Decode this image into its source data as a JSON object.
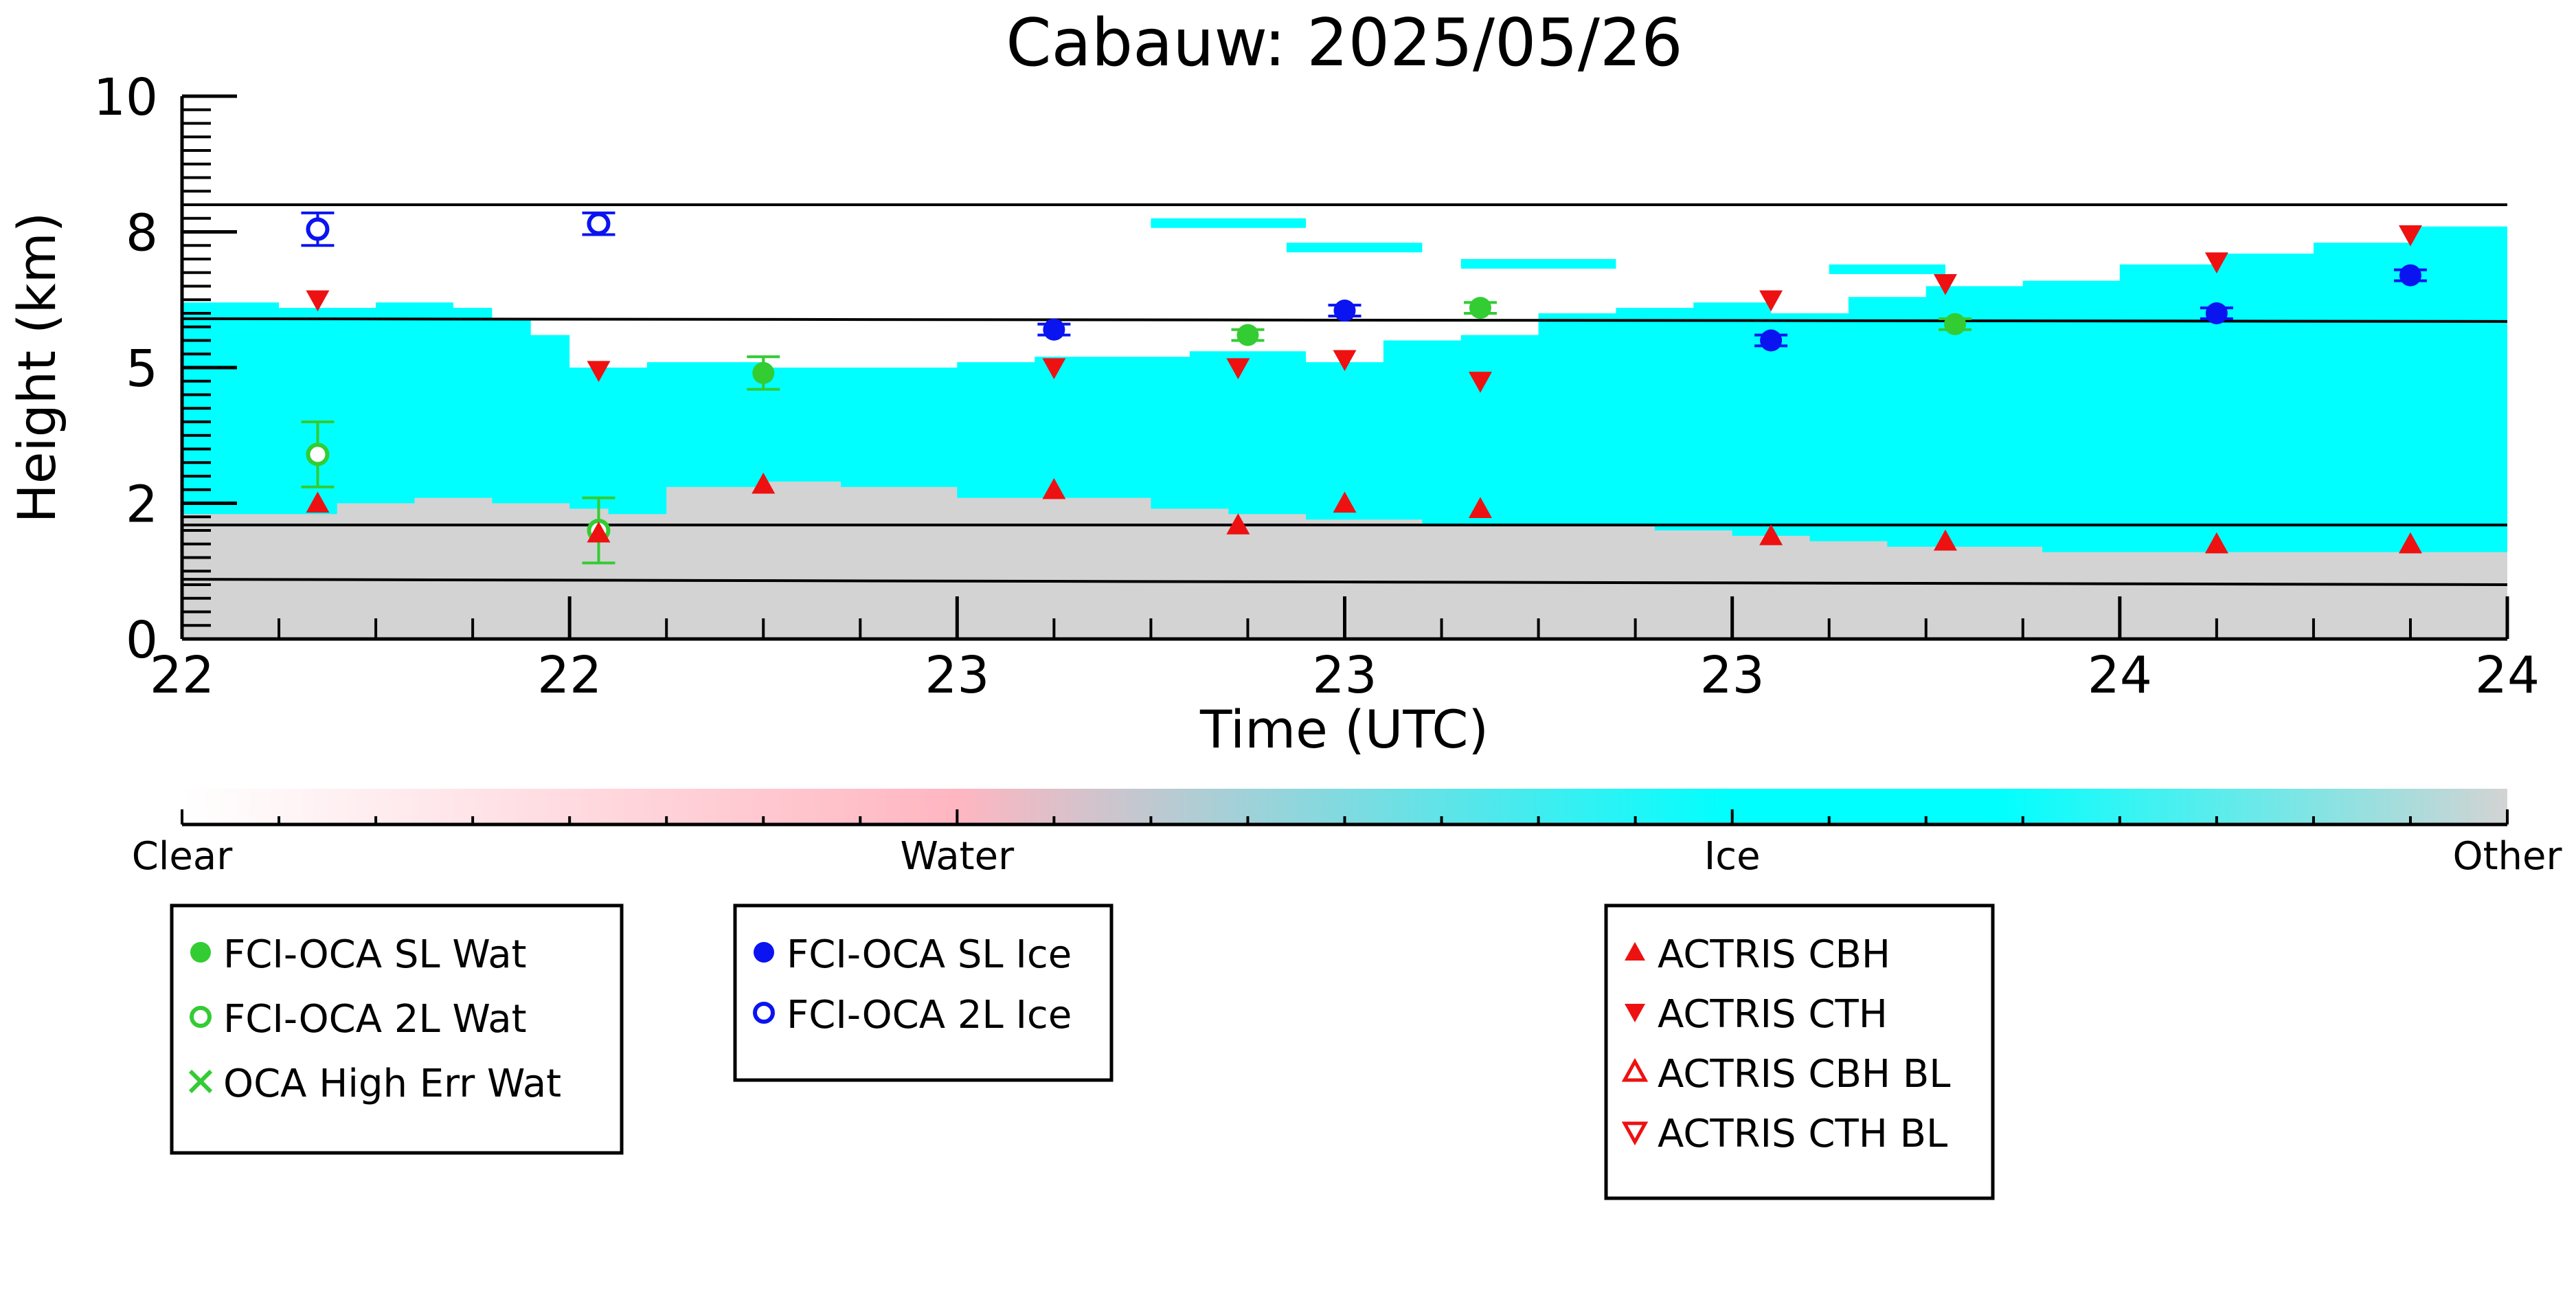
{
  "chart_data": {
    "type": "scatter",
    "title": "Cabauw: 2025/05/26",
    "xlabel": "Time (UTC)",
    "ylabel": "Height (km)",
    "xlim": [
      0,
      120
    ],
    "ylim": [
      0,
      10
    ],
    "x_ticks": [
      {
        "x": 0,
        "label": "22"
      },
      {
        "x": 20,
        "label": "22"
      },
      {
        "x": 40,
        "label": "23"
      },
      {
        "x": 60,
        "label": "23"
      },
      {
        "x": 80,
        "label": "23"
      },
      {
        "x": 100,
        "label": "24"
      },
      {
        "x": 120,
        "label": "24"
      }
    ],
    "y_ticks": [
      {
        "y": 0,
        "label": "0"
      },
      {
        "y": 2.5,
        "label": "2"
      },
      {
        "y": 5,
        "label": "5"
      },
      {
        "y": 7.5,
        "label": "8"
      },
      {
        "y": 10,
        "label": "10"
      }
    ],
    "classification_background": {
      "other_top": [
        [
          0,
          2.3
        ],
        [
          3,
          2.3
        ],
        [
          8,
          2.5
        ],
        [
          12,
          2.6
        ],
        [
          16,
          2.5
        ],
        [
          20,
          2.4
        ],
        [
          22,
          2.3
        ],
        [
          25,
          2.8
        ],
        [
          30,
          2.9
        ],
        [
          34,
          2.8
        ],
        [
          40,
          2.6
        ],
        [
          46,
          2.6
        ],
        [
          50,
          2.4
        ],
        [
          54,
          2.3
        ],
        [
          58,
          2.2
        ],
        [
          60,
          2.2
        ],
        [
          64,
          2.1
        ],
        [
          68,
          2.1
        ],
        [
          72,
          2.1
        ],
        [
          76,
          2.0
        ],
        [
          80,
          1.9
        ],
        [
          84,
          1.8
        ],
        [
          88,
          1.7
        ],
        [
          92,
          1.7
        ],
        [
          96,
          1.6
        ],
        [
          100,
          1.6
        ],
        [
          105,
          1.6
        ],
        [
          110,
          1.6
        ],
        [
          115,
          1.6
        ],
        [
          120,
          1.6
        ]
      ],
      "ice_top": [
        [
          0,
          6.2
        ],
        [
          5,
          6.1
        ],
        [
          10,
          6.2
        ],
        [
          14,
          6.1
        ],
        [
          16,
          5.9
        ],
        [
          18,
          5.6
        ],
        [
          20,
          5.0
        ],
        [
          24,
          5.1
        ],
        [
          30,
          5.0
        ],
        [
          36,
          5.0
        ],
        [
          40,
          5.1
        ],
        [
          44,
          5.2
        ],
        [
          48,
          5.2
        ],
        [
          52,
          5.3
        ],
        [
          55,
          5.3
        ],
        [
          58,
          5.1
        ],
        [
          62,
          5.5
        ],
        [
          66,
          5.6
        ],
        [
          70,
          6.0
        ],
        [
          74,
          6.1
        ],
        [
          78,
          6.2
        ],
        [
          82,
          6.0
        ],
        [
          86,
          6.3
        ],
        [
          90,
          6.5
        ],
        [
          95,
          6.6
        ],
        [
          100,
          6.9
        ],
        [
          105,
          7.1
        ],
        [
          110,
          7.3
        ],
        [
          115,
          7.6
        ],
        [
          120,
          7.8
        ]
      ],
      "reference_lines_km": [
        [
          [
            0,
            8.0
          ],
          [
            120,
            8.0
          ]
        ],
        [
          [
            0,
            5.9
          ],
          [
            120,
            5.85
          ]
        ],
        [
          [
            0,
            2.1
          ],
          [
            120,
            2.1
          ]
        ],
        [
          [
            0,
            1.1
          ],
          [
            120,
            1.0
          ]
        ]
      ]
    },
    "colorbar": {
      "labels": [
        "Clear",
        "Water",
        "Ice",
        "Other"
      ],
      "colors": {
        "clear": "#ffffff",
        "water": "#ffb6c1",
        "ice": "#00ffff",
        "other": "#d3d3d3"
      }
    },
    "series": [
      {
        "name": "FCI-OCA SL Wat",
        "color": "#33cc33",
        "marker": "filled-circle",
        "points": [
          {
            "x": 30,
            "y": 4.9,
            "err": 0.3
          },
          {
            "x": 55,
            "y": 5.6,
            "err": 0.1
          },
          {
            "x": 67,
            "y": 6.1,
            "err": 0.1
          },
          {
            "x": 91.5,
            "y": 5.8,
            "err": 0.1
          }
        ]
      },
      {
        "name": "FCI-OCA 2L Wat",
        "color": "#33cc33",
        "marker": "open-circle",
        "points": [
          {
            "x": 7,
            "y": 3.4,
            "err": 0.6
          },
          {
            "x": 21.5,
            "y": 2.0,
            "err": 0.6
          }
        ]
      },
      {
        "name": "OCA High Err Wat",
        "color": "#33cc33",
        "marker": "x",
        "points": []
      },
      {
        "name": "FCI-OCA SL Ice",
        "color": "#0a14f0",
        "marker": "filled-circle",
        "points": [
          {
            "x": 45,
            "y": 5.7,
            "err": 0.1
          },
          {
            "x": 60,
            "y": 6.05,
            "err": 0.1
          },
          {
            "x": 82,
            "y": 5.5,
            "err": 0.1
          },
          {
            "x": 105,
            "y": 6.0,
            "err": 0.1
          },
          {
            "x": 115,
            "y": 6.7,
            "err": 0.1
          }
        ]
      },
      {
        "name": "FCI-OCA 2L Ice",
        "color": "#0a14f0",
        "marker": "open-circle",
        "points": [
          {
            "x": 7,
            "y": 7.55,
            "err": 0.3
          },
          {
            "x": 21.5,
            "y": 7.65,
            "err": 0.2
          }
        ]
      },
      {
        "name": "ACTRIS CBH",
        "color": "#ee1111",
        "marker": "triangle-up",
        "points": [
          {
            "x": 7,
            "y": 2.5
          },
          {
            "x": 21.5,
            "y": 1.95
          },
          {
            "x": 30,
            "y": 2.85
          },
          {
            "x": 45,
            "y": 2.75
          },
          {
            "x": 54.5,
            "y": 2.1
          },
          {
            "x": 60,
            "y": 2.5
          },
          {
            "x": 67,
            "y": 2.4
          },
          {
            "x": 82,
            "y": 1.9
          },
          {
            "x": 91,
            "y": 1.8
          },
          {
            "x": 105,
            "y": 1.75
          },
          {
            "x": 115,
            "y": 1.75
          }
        ]
      },
      {
        "name": "ACTRIS CTH",
        "color": "#ee1111",
        "marker": "triangle-down",
        "points": [
          {
            "x": 7,
            "y": 6.25
          },
          {
            "x": 21.5,
            "y": 4.95
          },
          {
            "x": 45,
            "y": 5.0
          },
          {
            "x": 54.5,
            "y": 5.0
          },
          {
            "x": 60,
            "y": 5.15
          },
          {
            "x": 67,
            "y": 4.75
          },
          {
            "x": 82,
            "y": 6.25
          },
          {
            "x": 91,
            "y": 6.55
          },
          {
            "x": 105,
            "y": 6.95
          },
          {
            "x": 115,
            "y": 7.45
          }
        ]
      },
      {
        "name": "ACTRIS CBH BL",
        "color": "#ee1111",
        "marker": "open-triangle-up",
        "points": []
      },
      {
        "name": "ACTRIS CTH BL",
        "color": "#ee1111",
        "marker": "open-triangle-down",
        "points": []
      }
    ],
    "legend_groups": [
      [
        "FCI-OCA SL Wat",
        "FCI-OCA 2L Wat",
        "OCA High Err Wat"
      ],
      [
        "FCI-OCA SL Ice",
        "FCI-OCA 2L Ice"
      ],
      [
        "ACTRIS CBH",
        "ACTRIS CTH",
        "ACTRIS CBH BL",
        "ACTRIS CTH BL"
      ]
    ],
    "grid": false,
    "legend_position": "bottom"
  }
}
